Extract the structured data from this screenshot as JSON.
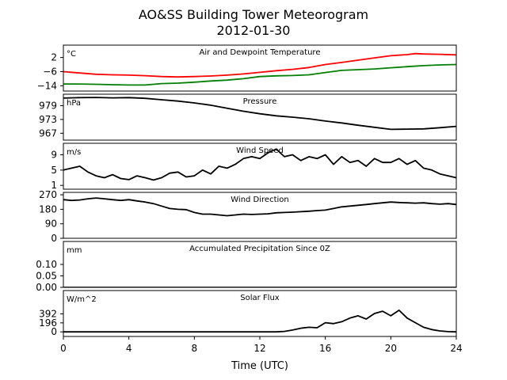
{
  "title": "AO&SS Building Tower Meteorogram",
  "subtitle": "2012-01-30",
  "chart_data": {
    "type": "line",
    "xlabel": "Time (UTC)",
    "xlim": [
      0,
      24
    ],
    "xticks": [
      "0",
      "4",
      "8",
      "12",
      "16",
      "20",
      "24"
    ],
    "panels": [
      {
        "title": "Air and Dewpoint Temperature",
        "unit": "°C",
        "ylim": [
          -17,
          9
        ],
        "yticks": [
          2,
          -6,
          -14
        ],
        "series": [
          {
            "color": "#ff0000",
            "x": [
              0,
              1,
              2,
              3,
              4,
              5,
              6,
              7,
              8,
              9,
              10,
              11,
              12,
              13,
              14,
              15,
              16,
              17,
              18,
              19,
              20,
              21,
              21.5,
              22,
              23,
              24
            ],
            "y": [
              -6.0,
              -6.8,
              -7.5,
              -7.8,
              -8.0,
              -8.3,
              -8.8,
              -9.0,
              -8.8,
              -8.5,
              -8.0,
              -7.3,
              -6.4,
              -5.5,
              -4.7,
              -3.7,
              -2.0,
              -0.8,
              0.5,
              1.8,
              3.0,
              3.6,
              4.2,
              4.0,
              3.8,
              3.5
            ]
          },
          {
            "color": "#008000",
            "x": [
              0,
              1,
              2,
              3,
              4,
              5,
              6,
              7,
              8,
              9,
              10,
              11,
              12,
              13,
              14,
              15,
              16,
              17,
              18,
              19,
              20,
              21,
              22,
              23,
              24
            ],
            "y": [
              -13.0,
              -13.0,
              -13.2,
              -13.4,
              -13.6,
              -13.6,
              -12.8,
              -12.5,
              -12.0,
              -11.3,
              -10.8,
              -10.0,
              -8.8,
              -8.4,
              -8.2,
              -7.8,
              -6.5,
              -5.3,
              -4.9,
              -4.5,
              -3.8,
              -3.2,
              -2.6,
              -2.2,
              -2.0
            ]
          }
        ]
      },
      {
        "title": "Pressure",
        "unit": "hPa",
        "ylim": [
          964,
          984
        ],
        "yticks": [
          979,
          973,
          967
        ],
        "series": [
          {
            "color": "#000000",
            "x": [
              0,
              1,
              2,
              3,
              4,
              5,
              6,
              7,
              8,
              9,
              10,
              11,
              12,
              13,
              14,
              15,
              16,
              17,
              18,
              19,
              20,
              21,
              22,
              23,
              24
            ],
            "y": [
              982.3,
              982.5,
              982.6,
              982.4,
              982.5,
              982.2,
              981.6,
              981.0,
              980.2,
              979.2,
              977.9,
              976.6,
              975.5,
              974.6,
              974.0,
              973.3,
              972.3,
              971.5,
              970.5,
              969.6,
              968.7,
              968.8,
              968.9,
              969.4,
              970.0
            ]
          }
        ]
      },
      {
        "title": "Wind Speed",
        "unit": "m/s",
        "ylim": [
          0,
          12
        ],
        "yticks": [
          9,
          5,
          1
        ],
        "series": [
          {
            "color": "#000000",
            "x": [
              0,
              0.5,
              1,
              1.5,
              2,
              2.5,
              3,
              3.5,
              4,
              4.5,
              5,
              5.5,
              6,
              6.5,
              7,
              7.5,
              8,
              8.5,
              9,
              9.5,
              10,
              10.5,
              11,
              11.5,
              12,
              12.5,
              13,
              13.5,
              14,
              14.5,
              15,
              15.5,
              16,
              16.5,
              17,
              17.5,
              18,
              18.5,
              19,
              19.5,
              20,
              20.5,
              21,
              21.5,
              22,
              22.5,
              23,
              23.5,
              24
            ],
            "y": [
              5.0,
              5.5,
              6.0,
              4.5,
              3.5,
              3.0,
              3.8,
              2.8,
              2.5,
              3.5,
              3.0,
              2.4,
              3.0,
              4.2,
              4.5,
              3.2,
              3.5,
              5.0,
              4.0,
              6.0,
              5.5,
              6.5,
              8.0,
              8.5,
              8.0,
              9.5,
              10.5,
              8.5,
              9.0,
              7.5,
              8.5,
              8.0,
              9.0,
              6.5,
              8.5,
              7.0,
              7.5,
              6.0,
              8.0,
              7.0,
              7.0,
              8.0,
              6.5,
              7.5,
              5.5,
              5.0,
              4.0,
              3.5,
              3.0
            ]
          }
        ]
      },
      {
        "title": "Wind Direction",
        "unit": "",
        "ylim": [
          0,
          285
        ],
        "yticks": [
          270,
          180,
          90,
          0
        ],
        "series": [
          {
            "color": "#000000",
            "x": [
              0,
              0.5,
              1,
              1.5,
              2,
              2.5,
              3,
              3.5,
              4,
              4.5,
              5,
              5.5,
              6,
              6.5,
              7,
              7.5,
              8,
              8.5,
              9,
              9.5,
              10,
              10.5,
              11,
              11.5,
              12,
              12.5,
              13,
              13.5,
              14,
              14.5,
              15,
              15.5,
              16,
              16.5,
              17,
              17.5,
              18,
              18.5,
              19,
              19.5,
              20,
              20.5,
              21,
              21.5,
              22,
              22.5,
              23,
              23.5,
              24
            ],
            "y": [
              240,
              235,
              238,
              245,
              250,
              245,
              240,
              235,
              240,
              232,
              225,
              215,
              200,
              185,
              180,
              178,
              160,
              150,
              150,
              145,
              140,
              145,
              150,
              148,
              150,
              152,
              158,
              160,
              162,
              165,
              168,
              172,
              175,
              185,
              195,
              200,
              205,
              210,
              215,
              220,
              225,
              222,
              220,
              218,
              220,
              215,
              212,
              215,
              210
            ]
          }
        ]
      },
      {
        "title": "Accumulated Precipitation Since 0Z",
        "unit": "mm",
        "ylim": [
          0,
          0.2
        ],
        "yticks": [
          "0.10",
          "0.05",
          "0.00"
        ],
        "series": [
          {
            "color": "#000000",
            "x": [
              0,
              24
            ],
            "y": [
              0,
              0
            ]
          }
        ]
      },
      {
        "title": "Solar Flux",
        "unit": "W/m^2",
        "ylim": [
          -100,
          900
        ],
        "yticks": [
          392,
          196,
          0
        ],
        "series": [
          {
            "color": "#000000",
            "x": [
              0,
              2,
              4,
              6,
              8,
              10,
              12,
              13,
              13.5,
              14,
              14.5,
              15,
              15.5,
              16,
              16.5,
              17,
              17.5,
              18,
              18.5,
              19,
              19.5,
              20,
              20.5,
              21,
              21.5,
              22,
              22.5,
              23,
              23.5,
              24
            ],
            "y": [
              0,
              0,
              0,
              0,
              0,
              0,
              0,
              0,
              10,
              40,
              80,
              100,
              90,
              200,
              180,
              220,
              300,
              350,
              280,
              400,
              450,
              350,
              470,
              300,
              200,
              100,
              50,
              20,
              5,
              0
            ]
          }
        ]
      }
    ]
  }
}
